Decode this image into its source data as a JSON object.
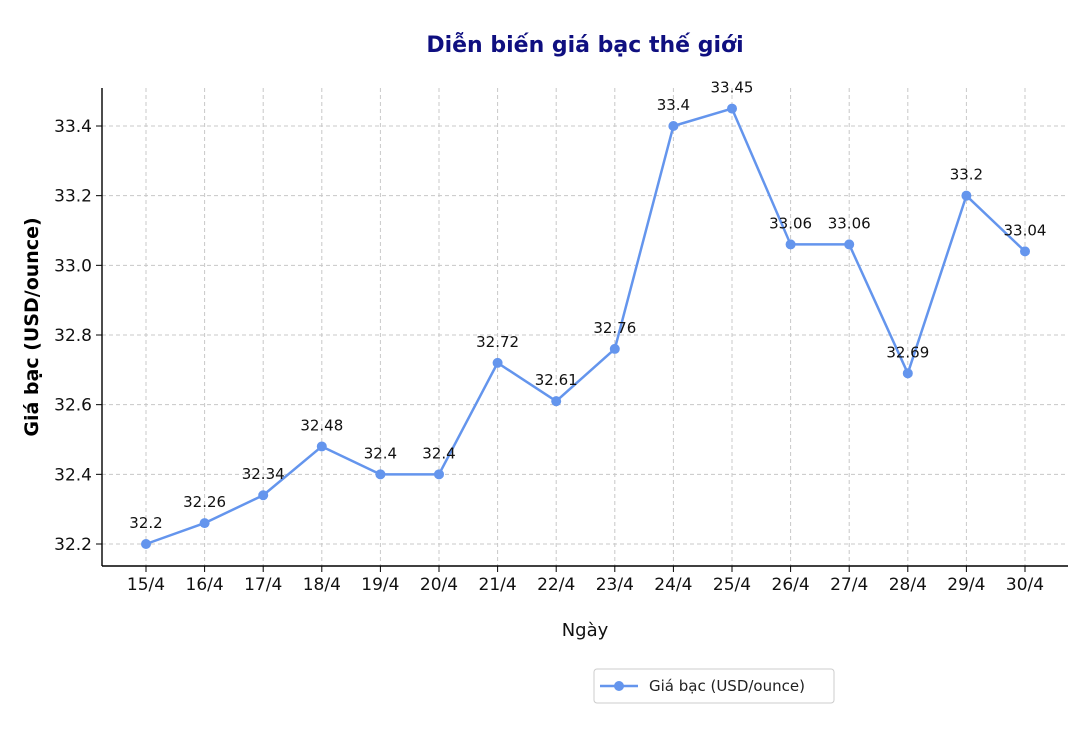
{
  "chart_data": {
    "type": "line",
    "title": "Diễn biến giá bạc thế giới",
    "xlabel": "Ngày",
    "ylabel": "Giá bạc (USD/ounce)",
    "categories": [
      "15/4",
      "16/4",
      "17/4",
      "18/4",
      "19/4",
      "20/4",
      "21/4",
      "22/4",
      "23/4",
      "24/4",
      "25/4",
      "26/4",
      "27/4",
      "28/4",
      "29/4",
      "30/4"
    ],
    "series": [
      {
        "name": "Giá bạc (USD/ounce)",
        "values": [
          32.2,
          32.26,
          32.34,
          32.48,
          32.4,
          32.4,
          32.72,
          32.61,
          32.76,
          33.4,
          33.45,
          33.06,
          33.06,
          32.69,
          33.2,
          33.04
        ],
        "value_labels": [
          "32.2",
          "32.26",
          "32.34",
          "32.48",
          "32.4",
          "32.4",
          "32.72",
          "32.61",
          "32.76",
          "33.4",
          "33.45",
          "33.06",
          "33.06",
          "32.69",
          "33.2",
          "33.04"
        ],
        "color": "#6495ED"
      }
    ],
    "yticks": [
      "32.2",
      "32.4",
      "32.6",
      "32.8",
      "33.0",
      "33.2",
      "33.4"
    ],
    "ylim": [
      32.16,
      33.52
    ],
    "grid": true,
    "legend_position": "bottom-center"
  }
}
